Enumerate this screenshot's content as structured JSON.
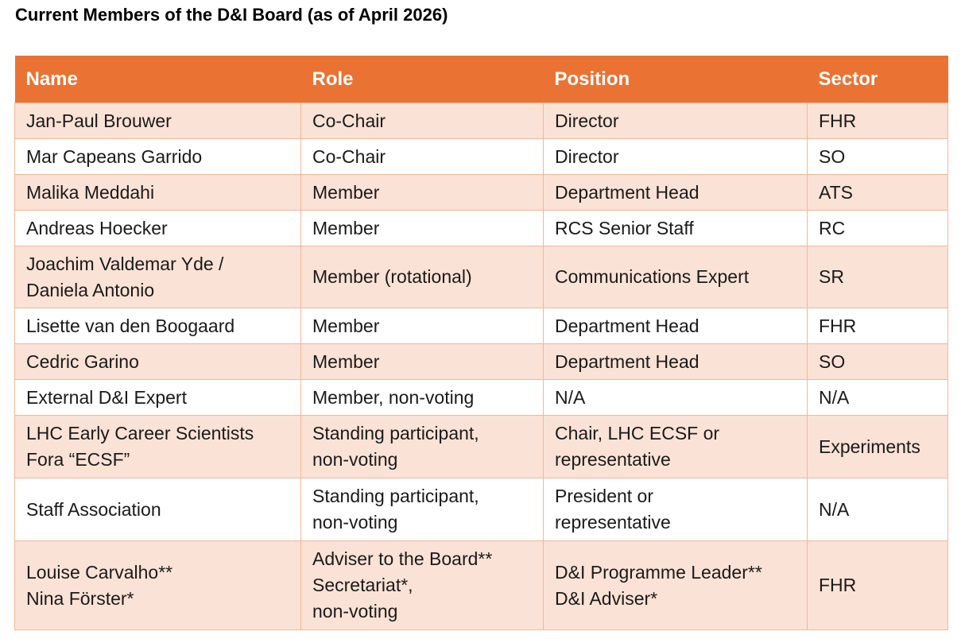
{
  "title": "Current Members of the D&I Board (as of April 2026)",
  "colors": {
    "header_bg": "#ea7333",
    "row_shaded": "#fbe2d6",
    "row_plain": "#ffffff",
    "border": "#f2b797"
  },
  "table": {
    "headers": [
      "Name",
      "Role",
      "Position",
      "Sector"
    ],
    "rows": [
      {
        "name": [
          "Jan-Paul Brouwer"
        ],
        "role": [
          "Co-Chair"
        ],
        "position": [
          "Director"
        ],
        "sector": [
          "FHR"
        ]
      },
      {
        "name": [
          "Mar Capeans Garrido"
        ],
        "role": [
          "Co-Chair"
        ],
        "position": [
          "Director"
        ],
        "sector": [
          "SO"
        ]
      },
      {
        "name": [
          "Malika Meddahi"
        ],
        "role": [
          "Member"
        ],
        "position": [
          "Department Head"
        ],
        "sector": [
          "ATS"
        ]
      },
      {
        "name": [
          "Andreas Hoecker"
        ],
        "role": [
          "Member"
        ],
        "position": [
          "RCS Senior Staff"
        ],
        "sector": [
          "RC"
        ]
      },
      {
        "name": [
          "Joachim Valdemar Yde /",
          "Daniela Antonio"
        ],
        "role": [
          "Member (rotational)"
        ],
        "position": [
          "Communications Expert"
        ],
        "sector": [
          "SR"
        ]
      },
      {
        "name": [
          "Lisette van den Boogaard"
        ],
        "role": [
          "Member"
        ],
        "position": [
          "Department Head"
        ],
        "sector": [
          "FHR"
        ]
      },
      {
        "name": [
          "Cedric Garino"
        ],
        "role": [
          "Member"
        ],
        "position": [
          "Department Head"
        ],
        "sector": [
          "SO"
        ]
      },
      {
        "name": [
          "External D&I Expert"
        ],
        "role": [
          "Member, non-voting"
        ],
        "position": [
          "N/A"
        ],
        "sector": [
          "N/A"
        ]
      },
      {
        "name": [
          "LHC Early Career Scientists",
          "Fora “ECSF”"
        ],
        "role": [
          "Standing participant,",
          "non-voting"
        ],
        "position": [
          "Chair, LHC ECSF or",
          "representative"
        ],
        "sector": [
          "Experiments"
        ]
      },
      {
        "name": [
          "Staff Association"
        ],
        "role": [
          "Standing participant,",
          "non-voting"
        ],
        "position": [
          "President or",
          "representative"
        ],
        "sector": [
          "N/A"
        ]
      },
      {
        "name": [
          "Louise Carvalho**",
          "Nina Förster*"
        ],
        "role": [
          "Adviser to the Board**",
          "Secretariat*,",
          "non-voting"
        ],
        "position": [
          "D&I Programme Leader**",
          "D&I Adviser*"
        ],
        "sector": [
          "FHR"
        ]
      }
    ]
  }
}
